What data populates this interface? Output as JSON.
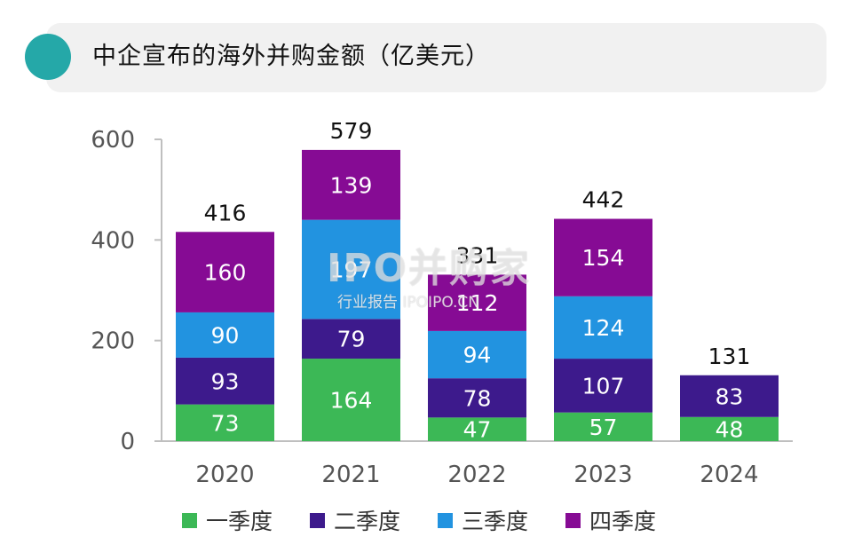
{
  "title": "中企宣布的海外并购金额（亿美元）",
  "colors": {
    "q1": "#3cb856",
    "q2": "#3d1a8c",
    "q3": "#2293e0",
    "q4": "#860b94",
    "title_dot": "#25a8a8"
  },
  "watermark": {
    "logo": "IPO并购家",
    "sub": "行业报告 IPOIPO.CN"
  },
  "chart_data": {
    "type": "bar",
    "stacked": true,
    "categories": [
      "2020",
      "2021",
      "2022",
      "2023",
      "2024"
    ],
    "series": [
      {
        "name": "一季度",
        "values": [
          73,
          164,
          47,
          57,
          48
        ]
      },
      {
        "name": "二季度",
        "values": [
          93,
          79,
          78,
          107,
          83
        ]
      },
      {
        "name": "三季度",
        "values": [
          90,
          197,
          94,
          124,
          null
        ]
      },
      {
        "name": "四季度",
        "values": [
          160,
          139,
          112,
          154,
          null
        ]
      }
    ],
    "totals": [
      416,
      579,
      331,
      442,
      131
    ],
    "yticks": [
      0,
      200,
      400,
      600
    ],
    "ylim": [
      0,
      600
    ],
    "grid": false,
    "legend": "bottom"
  }
}
